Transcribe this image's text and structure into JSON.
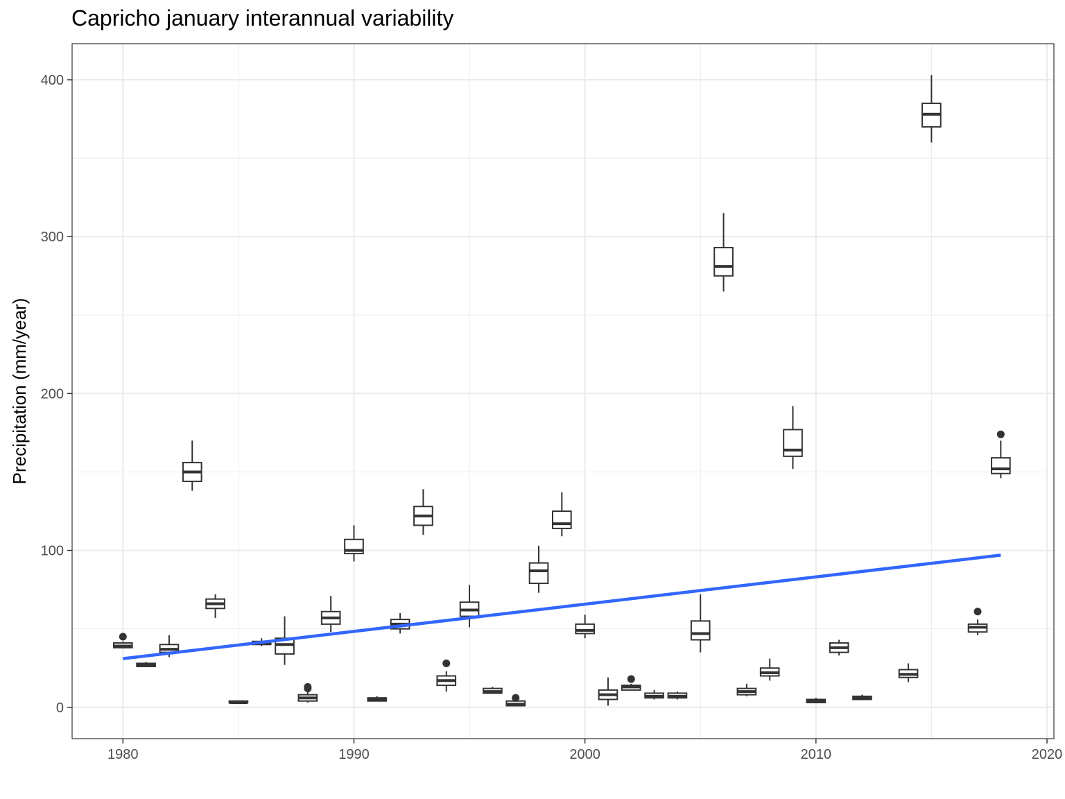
{
  "chart_data": {
    "type": "boxplot",
    "title": "Capricho january interannual variability",
    "xlabel": "",
    "ylabel": "Precipitation (mm/year)",
    "xlim": [
      1977.8,
      2020.3
    ],
    "ylim": [
      -20,
      423
    ],
    "x_ticks": [
      1980,
      1990,
      2000,
      2010,
      2020
    ],
    "y_ticks": [
      0,
      100,
      200,
      300,
      400
    ],
    "grid": true,
    "legend": "none",
    "colors": {
      "box": "#333333",
      "trend": "#3366ff",
      "grid": "#ebebeb"
    },
    "boxes": [
      {
        "year": 1980,
        "min": 38,
        "q1": 38,
        "median": 39,
        "q3": 41,
        "max": 42,
        "outliers": [
          45
        ]
      },
      {
        "year": 1981,
        "min": 26,
        "q1": 26,
        "median": 27,
        "q3": 28,
        "max": 29,
        "outliers": []
      },
      {
        "year": 1982,
        "min": 32,
        "q1": 35,
        "median": 37,
        "q3": 40,
        "max": 46,
        "outliers": []
      },
      {
        "year": 1983,
        "min": 138,
        "q1": 144,
        "median": 150,
        "q3": 156,
        "max": 170,
        "outliers": []
      },
      {
        "year": 1984,
        "min": 57,
        "q1": 63,
        "median": 66,
        "q3": 69,
        "max": 72,
        "outliers": []
      },
      {
        "year": 1985,
        "min": 3,
        "q1": 3,
        "median": 3,
        "q3": 4,
        "max": 4,
        "outliers": []
      },
      {
        "year": 1986,
        "min": 39,
        "q1": 40,
        "median": 41,
        "q3": 42,
        "max": 44,
        "outliers": []
      },
      {
        "year": 1987,
        "min": 27,
        "q1": 34,
        "median": 40,
        "q3": 44,
        "max": 58,
        "outliers": []
      },
      {
        "year": 1988,
        "min": 3,
        "q1": 4,
        "median": 6,
        "q3": 8,
        "max": 10,
        "outliers": [
          12,
          13
        ]
      },
      {
        "year": 1989,
        "min": 48,
        "q1": 53,
        "median": 57,
        "q3": 61,
        "max": 71,
        "outliers": []
      },
      {
        "year": 1990,
        "min": 93,
        "q1": 98,
        "median": 100,
        "q3": 107,
        "max": 116,
        "outliers": []
      },
      {
        "year": 1991,
        "min": 4,
        "q1": 4,
        "median": 5,
        "q3": 6,
        "max": 7,
        "outliers": []
      },
      {
        "year": 1992,
        "min": 47,
        "q1": 50,
        "median": 53,
        "q3": 56,
        "max": 60,
        "outliers": []
      },
      {
        "year": 1993,
        "min": 110,
        "q1": 116,
        "median": 122,
        "q3": 128,
        "max": 139,
        "outliers": []
      },
      {
        "year": 1994,
        "min": 10,
        "q1": 14,
        "median": 17,
        "q3": 20,
        "max": 23,
        "outliers": [
          28
        ]
      },
      {
        "year": 1995,
        "min": 51,
        "q1": 58,
        "median": 62,
        "q3": 67,
        "max": 78,
        "outliers": []
      },
      {
        "year": 1996,
        "min": 9,
        "q1": 9,
        "median": 10,
        "q3": 12,
        "max": 13,
        "outliers": []
      },
      {
        "year": 1997,
        "min": 1,
        "q1": 1,
        "median": 2,
        "q3": 4,
        "max": 4,
        "outliers": [
          6
        ]
      },
      {
        "year": 1998,
        "min": 73,
        "q1": 79,
        "median": 87,
        "q3": 92,
        "max": 103,
        "outliers": []
      },
      {
        "year": 1999,
        "min": 109,
        "q1": 114,
        "median": 117,
        "q3": 125,
        "max": 137,
        "outliers": []
      },
      {
        "year": 2000,
        "min": 44,
        "q1": 47,
        "median": 49,
        "q3": 53,
        "max": 59,
        "outliers": []
      },
      {
        "year": 2001,
        "min": 1,
        "q1": 5,
        "median": 8,
        "q3": 11,
        "max": 19,
        "outliers": []
      },
      {
        "year": 2002,
        "min": 11,
        "q1": 11,
        "median": 13,
        "q3": 14,
        "max": 15,
        "outliers": [
          18
        ]
      },
      {
        "year": 2003,
        "min": 5,
        "q1": 6,
        "median": 7,
        "q3": 9,
        "max": 11,
        "outliers": []
      },
      {
        "year": 2004,
        "min": 5,
        "q1": 6,
        "median": 7,
        "q3": 9,
        "max": 10,
        "outliers": []
      },
      {
        "year": 2005,
        "min": 35,
        "q1": 43,
        "median": 47,
        "q3": 55,
        "max": 72,
        "outliers": []
      },
      {
        "year": 2006,
        "min": 265,
        "q1": 275,
        "median": 281,
        "q3": 293,
        "max": 315,
        "outliers": []
      },
      {
        "year": 2007,
        "min": 7,
        "q1": 8,
        "median": 10,
        "q3": 12,
        "max": 15,
        "outliers": []
      },
      {
        "year": 2008,
        "min": 17,
        "q1": 20,
        "median": 22,
        "q3": 25,
        "max": 31,
        "outliers": []
      },
      {
        "year": 2009,
        "min": 152,
        "q1": 160,
        "median": 164,
        "q3": 177,
        "max": 192,
        "outliers": []
      },
      {
        "year": 2010,
        "min": 3,
        "q1": 3,
        "median": 4,
        "q3": 5,
        "max": 6,
        "outliers": []
      },
      {
        "year": 2011,
        "min": 33,
        "q1": 35,
        "median": 38,
        "q3": 41,
        "max": 43,
        "outliers": []
      },
      {
        "year": 2012,
        "min": 5,
        "q1": 5,
        "median": 6,
        "q3": 7,
        "max": 8,
        "outliers": []
      },
      {
        "year": 2014,
        "min": 16,
        "q1": 19,
        "median": 21,
        "q3": 24,
        "max": 28,
        "outliers": []
      },
      {
        "year": 2015,
        "min": 360,
        "q1": 370,
        "median": 378,
        "q3": 385,
        "max": 403,
        "outliers": []
      },
      {
        "year": 2017,
        "min": 46,
        "q1": 48,
        "median": 51,
        "q3": 53,
        "max": 56,
        "outliers": [
          61
        ]
      },
      {
        "year": 2018,
        "min": 146,
        "q1": 149,
        "median": 152,
        "q3": 159,
        "max": 170,
        "outliers": [
          174
        ]
      }
    ],
    "trend": {
      "x": [
        1980,
        2018
      ],
      "y": [
        31,
        97
      ]
    }
  }
}
